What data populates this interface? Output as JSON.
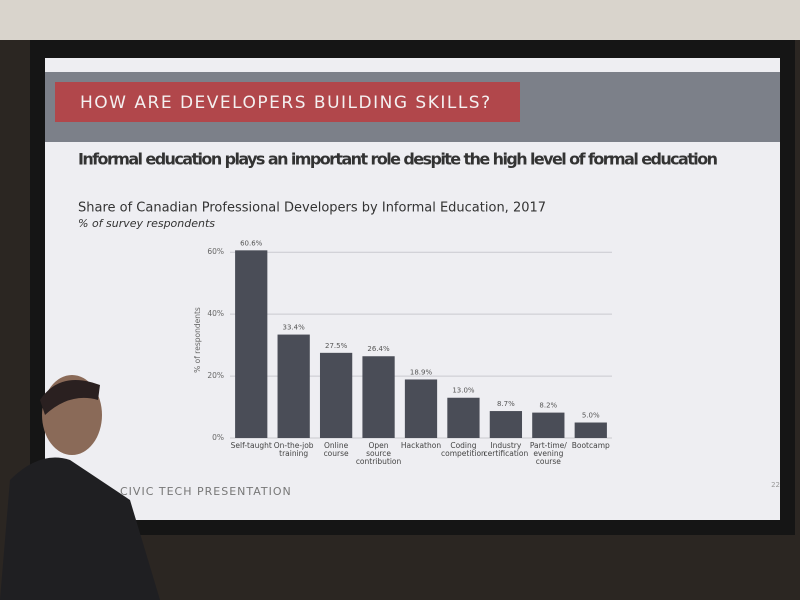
{
  "header": {
    "title": "HOW ARE DEVELOPERS BUILDING SKILLS?"
  },
  "chart_data": {
    "type": "bar",
    "headline": "Informal education plays an important role despite the high level of formal education",
    "title": "Share of Canadian Professional Developers by Informal Education, 2017",
    "subtitle": "% of survey respondents",
    "y_label": "% of respondents",
    "categories": [
      "Self-taught",
      "On-the-job training",
      "Online course",
      "Open source contribution",
      "Hackathon",
      "Coding competition",
      "Industry certification",
      "Part-time/ evening course",
      "Bootcamp"
    ],
    "values": [
      60.6,
      33.4,
      27.5,
      26.4,
      18.9,
      13.0,
      8.7,
      8.2,
      5.0
    ],
    "value_labels": [
      "60.6%",
      "33.4%",
      "27.5%",
      "26.4%",
      "18.9%",
      "13.0%",
      "8.7%",
      "8.2%",
      "5.0%"
    ],
    "color": "#4a4d57",
    "ylim": [
      0,
      62
    ],
    "yticks": [
      {
        "value": 0,
        "label": "0%"
      },
      {
        "value": 20,
        "label": "20%"
      },
      {
        "value": 40,
        "label": "40%"
      },
      {
        "value": 60,
        "label": "60%"
      }
    ],
    "grid": true
  },
  "footer": {
    "text": "CIVIC TECH PRESENTATION",
    "page": "22"
  }
}
